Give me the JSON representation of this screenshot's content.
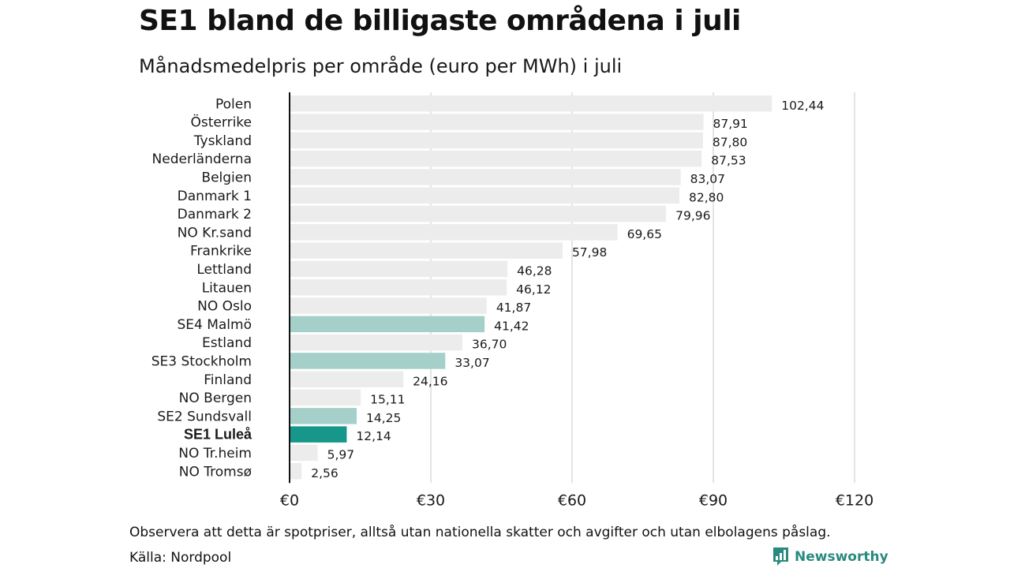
{
  "title": "SE1 bland de billigaste områdena i juli",
  "subtitle": "Månadsmedelpris per område (euro per MWh) i juli",
  "note": "Observera att detta är spotpriser, alltså utan nationella skatter och avgifter och utan elbolagens påslag.",
  "source": "Källa: Nordpool",
  "brand": {
    "name": "Newsworthy",
    "icon": "newsworthy-logo-icon"
  },
  "colors": {
    "bar_default": "#ececec",
    "bar_se": "#a5d0ca",
    "bar_highlight": "#17978a",
    "gridline": "#c8c8c8",
    "axis": "#111111",
    "brand": "#2a8a80"
  },
  "chart_data": {
    "type": "bar",
    "orientation": "horizontal",
    "categories": [
      "Polen",
      "Österrike",
      "Tyskland",
      "Nederländerna",
      "Belgien",
      "Danmark  1",
      "Danmark  2",
      "NO Kr.sand",
      "Frankrike",
      "Lettland",
      "Litauen",
      "NO Oslo",
      "SE4  Malmö",
      "Estland",
      "SE3  Stockholm",
      "Finland",
      "NO Bergen",
      "SE2  Sundsvall",
      "SE1 Luleå",
      "NO Tr.heim",
      "NO Tromsø"
    ],
    "values": [
      102.44,
      87.91,
      87.8,
      87.53,
      83.07,
      82.8,
      79.96,
      69.65,
      57.98,
      46.28,
      46.12,
      41.87,
      41.42,
      36.7,
      33.07,
      24.16,
      15.11,
      14.25,
      12.14,
      5.97,
      2.56
    ],
    "value_labels": [
      "102,44",
      "87,91",
      "87,80",
      "87,53",
      "83,07",
      "82,80",
      "79,96",
      "69,65",
      "57,98",
      "46,28",
      "46,12",
      "41,87",
      "41,42",
      "36,70",
      "33,07",
      "24,16",
      "15,11",
      "14,25",
      "12,14",
      "5,97",
      "2,56"
    ],
    "bar_kind": [
      "default",
      "default",
      "default",
      "default",
      "default",
      "default",
      "default",
      "default",
      "default",
      "default",
      "default",
      "default",
      "se",
      "default",
      "se",
      "default",
      "default",
      "se",
      "highlight",
      "default",
      "default"
    ],
    "bold_category": "SE1 Luleå",
    "xlim": [
      0,
      120
    ],
    "xticks": [
      0,
      30,
      60,
      90,
      120
    ],
    "xtick_labels": [
      "€0",
      "€30",
      "€60",
      "€90",
      "€120"
    ],
    "grid": true,
    "xlabel": "",
    "ylabel": ""
  }
}
